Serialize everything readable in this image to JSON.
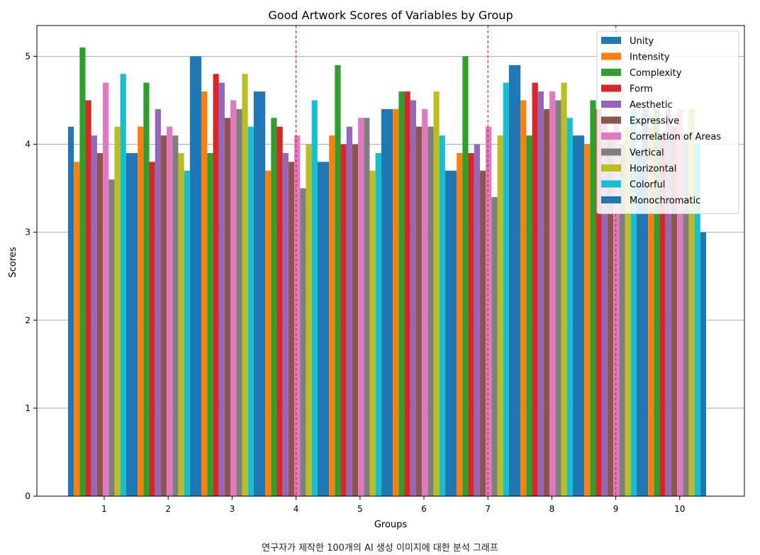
{
  "caption": "연구자가 제작한 100개의 AI 생성 이미지에 대한 분석 그래프",
  "colors": {
    "axis": "#000000",
    "grid": "#b0b0b0",
    "divider": "#d62728",
    "text": "#000000"
  },
  "chart_data": {
    "type": "bar",
    "title": "Good Artwork Scores of Variables by Group",
    "xlabel": "Groups",
    "ylabel": "Scores",
    "ylim": [
      0,
      5.35
    ],
    "yticks": [
      "0",
      "1",
      "2",
      "3",
      "4",
      "5"
    ],
    "categories": [
      "1",
      "2",
      "3",
      "4",
      "5",
      "6",
      "7",
      "8",
      "9",
      "10"
    ],
    "grid": "horizontal",
    "legend_position": "top-right",
    "dividers_after_groups": [
      4,
      7,
      9
    ],
    "series": [
      {
        "name": "Unity",
        "color": "#1f77b4",
        "values": [
          4.2,
          3.9,
          5.0,
          4.6,
          3.8,
          4.4,
          3.7,
          4.9,
          4.1,
          4.4
        ]
      },
      {
        "name": "Intensity",
        "color": "#ff7f0e",
        "values": [
          3.8,
          4.2,
          4.6,
          3.7,
          4.1,
          4.4,
          3.9,
          4.5,
          4.0,
          4.2
        ]
      },
      {
        "name": "Complexity",
        "color": "#2ca02c",
        "values": [
          5.1,
          4.7,
          3.9,
          4.3,
          4.9,
          4.6,
          5.0,
          4.1,
          4.5,
          4.4
        ]
      },
      {
        "name": "Form",
        "color": "#d62728",
        "values": [
          4.5,
          3.8,
          4.8,
          4.2,
          4.0,
          4.6,
          3.9,
          4.7,
          4.4,
          4.1
        ]
      },
      {
        "name": "Aesthetic",
        "color": "#9467bd",
        "values": [
          4.1,
          4.4,
          4.7,
          3.9,
          4.2,
          4.5,
          4.0,
          4.6,
          4.3,
          4.4
        ]
      },
      {
        "name": "Expressive",
        "color": "#8c564b",
        "values": [
          3.9,
          4.1,
          4.3,
          3.8,
          4.0,
          4.2,
          3.7,
          4.4,
          4.1,
          4.2
        ]
      },
      {
        "name": "Correlation of Areas",
        "color": "#e377c2",
        "values": [
          4.7,
          4.2,
          4.5,
          4.1,
          4.3,
          4.4,
          4.2,
          4.6,
          4.3,
          4.4
        ]
      },
      {
        "name": "Vertical",
        "color": "#7f7f7f",
        "values": [
          3.6,
          4.1,
          4.4,
          3.5,
          4.3,
          4.2,
          3.4,
          4.5,
          4.0,
          4.1
        ]
      },
      {
        "name": "Horizontal",
        "color": "#bcbd22",
        "values": [
          4.2,
          3.9,
          4.8,
          4.0,
          3.7,
          4.6,
          4.1,
          4.7,
          4.2,
          4.4
        ]
      },
      {
        "name": "Colorful",
        "color": "#17becf",
        "values": [
          4.8,
          3.7,
          4.2,
          4.5,
          3.9,
          4.1,
          4.7,
          4.3,
          4.4,
          4.0
        ]
      },
      {
        "name": "Monochromatic",
        "color": "#1f77b4",
        "values": [
          3.9,
          5.0,
          4.6,
          3.8,
          4.4,
          3.7,
          4.9,
          4.1,
          3.9,
          3.0
        ]
      }
    ]
  }
}
